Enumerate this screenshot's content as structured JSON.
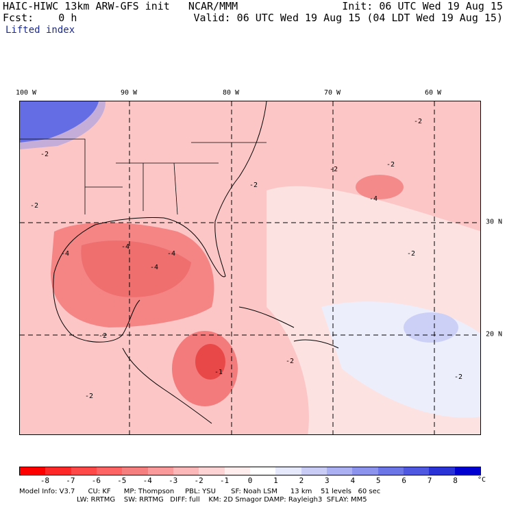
{
  "header": {
    "title": "HAIC-HIWC 13km ARW-GFS init   NCAR/MMM",
    "fcst": "Fcst:    0 h",
    "field": "Lifted index",
    "init": "Init: 06 UTC Wed 19 Aug 15",
    "valid": "Valid: 06 UTC Wed 19 Aug 15 (04 LDT Wed 19 Aug 15)"
  },
  "map": {
    "lon_labels": [
      "100 W",
      "90 W",
      "80 W",
      "70 W",
      "60 W"
    ],
    "lat_labels": [
      "30 N",
      "20 N"
    ],
    "contour_labels": [
      "-2",
      "-4",
      "-1"
    ]
  },
  "colorbar": {
    "ticks": [
      "-8",
      "-7",
      "-6",
      "-5",
      "-4",
      "-3",
      "-2",
      "-1",
      "0",
      "1",
      "2",
      "3",
      "4",
      "5",
      "6",
      "7",
      "8"
    ],
    "unit": "°C",
    "colors": [
      "#ff0000",
      "#ff2828",
      "#ff4848",
      "#ff6464",
      "#f57f7f",
      "#fa9a9a",
      "#fcb8b8",
      "#fdd3d3",
      "#ffecec",
      "#ffffff",
      "#e6e8fb",
      "#c9cdf6",
      "#aab0f1",
      "#8c93ec",
      "#6d76e6",
      "#4e58e0",
      "#2a33d6",
      "#0000d0"
    ]
  },
  "model_info": {
    "line1": "Model Info: V3.7      CU: KF      MP: Thompson     PBL: YSU       SF: Noah LSM      13 km    51 levels   60 sec",
    "line2": "LW: RRTMG    SW: RRTMG   DIFF: full    KM: 2D Smagor DAMP: Rayleigh3  SFLAY: MM5"
  }
}
